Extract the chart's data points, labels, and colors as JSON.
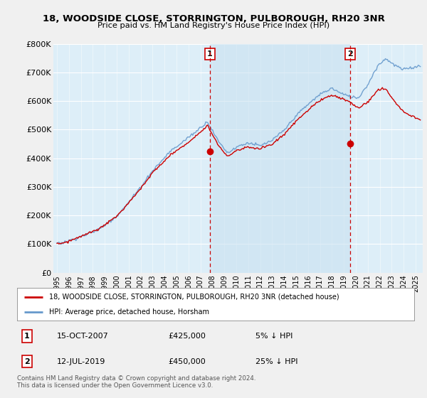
{
  "title": "18, WOODSIDE CLOSE, STORRINGTON, PULBOROUGH, RH20 3NR",
  "subtitle": "Price paid vs. HM Land Registry's House Price Index (HPI)",
  "legend_label_red": "18, WOODSIDE CLOSE, STORRINGTON, PULBOROUGH, RH20 3NR (detached house)",
  "legend_label_blue": "HPI: Average price, detached house, Horsham",
  "transaction1_date": "15-OCT-2007",
  "transaction1_price": "£425,000",
  "transaction1_hpi": "5% ↓ HPI",
  "transaction2_date": "12-JUL-2019",
  "transaction2_price": "£450,000",
  "transaction2_hpi": "25% ↓ HPI",
  "footnote": "Contains HM Land Registry data © Crown copyright and database right 2024.\nThis data is licensed under the Open Government Licence v3.0.",
  "ylim": [
    0,
    800000
  ],
  "yticks": [
    0,
    100000,
    200000,
    300000,
    400000,
    500000,
    600000,
    700000,
    800000
  ],
  "ytick_labels": [
    "£0",
    "£100K",
    "£200K",
    "£300K",
    "£400K",
    "£500K",
    "£600K",
    "£700K",
    "£800K"
  ],
  "background_color": "#f0f0f0",
  "plot_bg_color": "#ddeef8",
  "shade_color": "#c8e0f0",
  "red_color": "#cc0000",
  "blue_color": "#6699cc",
  "vline_color": "#cc0000",
  "marker1_x": 2007.79,
  "marker1_y": 425000,
  "marker2_x": 2019.54,
  "marker2_y": 450000,
  "xmin": 1994.7,
  "xmax": 2025.6
}
